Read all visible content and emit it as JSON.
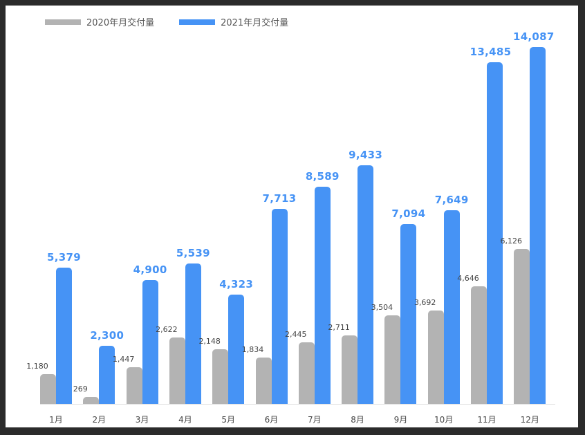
{
  "legend": {
    "series_2020": "2020年月交付量",
    "series_2021": "2021年月交付量"
  },
  "colors": {
    "series_2020": "#b3b3b3",
    "series_2021": "#4693f5",
    "frame": "#2b2b2b",
    "background": "#ffffff"
  },
  "chart_data": {
    "type": "bar",
    "title": "",
    "xlabel": "",
    "ylabel": "",
    "categories": [
      "1月",
      "2月",
      "3月",
      "4月",
      "5月",
      "6月",
      "7月",
      "8月",
      "9月",
      "10月",
      "11月",
      "12月"
    ],
    "series": [
      {
        "name": "2020年月交付量",
        "values": [
          1180,
          269,
          1447,
          2622,
          2148,
          1834,
          2445,
          2711,
          3504,
          3692,
          4646,
          6126
        ],
        "labels": [
          "1,180",
          "269",
          "1,447",
          "2,622",
          "2,148",
          "1,834",
          "2,445",
          "2,711",
          "3,504",
          "3,692",
          "4,646",
          "6,126"
        ]
      },
      {
        "name": "2021年月交付量",
        "values": [
          5379,
          2300,
          4900,
          5539,
          4323,
          7713,
          8589,
          9433,
          7094,
          7649,
          13485,
          14087
        ],
        "labels": [
          "5,379",
          "2,300",
          "4,900",
          "5,539",
          "4,323",
          "7,713",
          "8,589",
          "9,433",
          "7,094",
          "7,649",
          "13,485",
          "14,087"
        ]
      }
    ],
    "ylim": [
      0,
      15000
    ],
    "grid": false,
    "legend_position": "top-left",
    "data_labels": true
  }
}
